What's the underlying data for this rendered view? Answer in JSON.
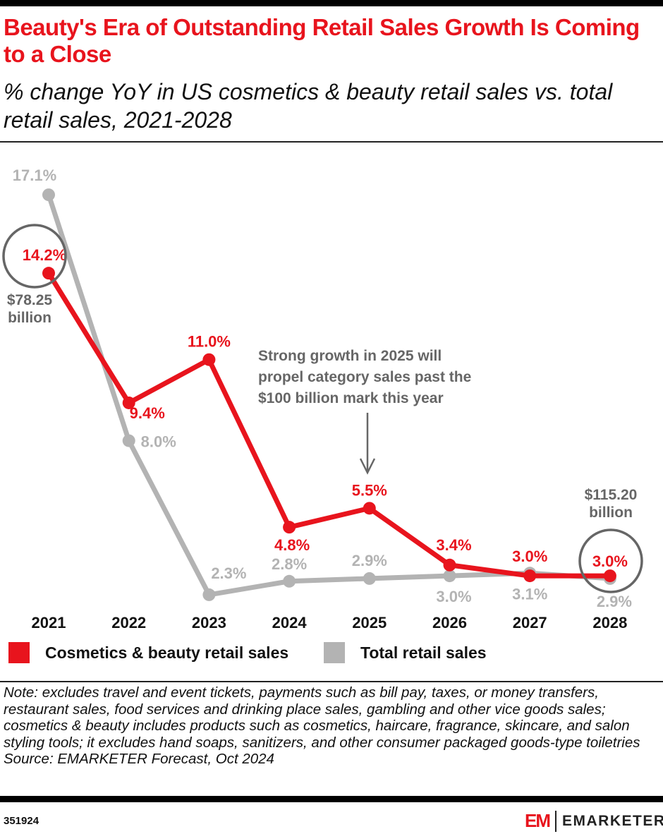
{
  "title": "Beauty's Era of Outstanding Retail Sales Growth Is Coming to a Close",
  "subtitle": "% change YoY in US cosmetics & beauty retail sales vs. total retail sales, 2021-2028",
  "chart_data": {
    "type": "line",
    "categories": [
      "2021",
      "2022",
      "2023",
      "2024",
      "2025",
      "2026",
      "2027",
      "2028"
    ],
    "series": [
      {
        "name": "Cosmetics & beauty retail sales",
        "color": "#e8141d",
        "values": [
          14.2,
          9.4,
          11.0,
          4.8,
          5.5,
          3.4,
          3.0,
          3.0
        ],
        "labels": [
          "14.2%",
          "9.4%",
          "11.0%",
          "4.8%",
          "5.5%",
          "3.4%",
          "3.0%",
          "3.0%"
        ]
      },
      {
        "name": "Total retail sales",
        "color": "#b3b3b3",
        "values": [
          17.1,
          8.0,
          2.3,
          2.8,
          2.9,
          3.0,
          3.1,
          2.9
        ],
        "labels": [
          "17.1%",
          "8.0%",
          "2.3%",
          "2.8%",
          "2.9%",
          "3.0%",
          "3.1%",
          "2.9%"
        ]
      }
    ],
    "annotations": [
      {
        "text": "$78.25 billion",
        "lines": [
          "$78.25",
          "billion"
        ],
        "category": "2021"
      },
      {
        "text": "$115.20 billion",
        "lines": [
          "$115.20",
          "billion"
        ],
        "category": "2028"
      },
      {
        "text": "Strong growth in 2025 will propel category sales past the $100 billion mark this year",
        "lines": [
          "Strong growth in 2025 will",
          "propel category sales past the",
          "$100 billion mark this year"
        ],
        "category": "2025"
      }
    ],
    "legend": "bottom",
    "grid": false
  },
  "note": "Note: excludes travel and event tickets, payments such as bill pay, taxes, or money transfers, restaurant sales, food services and drinking place sales, gambling and other vice goods sales; cosmetics & beauty includes products such as cosmetics, haircare, fragrance, skincare, and salon styling tools; it excludes hand soaps, sanitizers, and other consumer packaged goods-type toiletries",
  "source": "Source: EMARKETER Forecast, Oct 2024",
  "chart_id": "351924",
  "brand": {
    "mark": "EM",
    "name": "EMARKETER"
  }
}
